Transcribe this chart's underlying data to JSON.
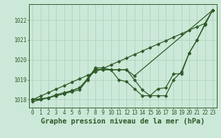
{
  "title": "Graphe pression niveau de la mer (hPa)",
  "background_color": "#cce8d8",
  "grid_color": "#aacfba",
  "line_color": "#2d5a27",
  "xlim": [
    -0.5,
    23.5
  ],
  "ylim": [
    1017.6,
    1022.8
  ],
  "xticks": [
    0,
    1,
    2,
    3,
    4,
    5,
    6,
    7,
    8,
    9,
    10,
    11,
    12,
    13,
    14,
    15,
    16,
    17,
    18,
    19,
    20,
    21,
    22,
    23
  ],
  "yticks": [
    1018,
    1019,
    1020,
    1021,
    1022
  ],
  "series": [
    {
      "x": [
        0,
        1,
        2,
        3,
        4,
        5,
        6,
        7,
        8,
        9,
        10,
        11,
        12,
        13,
        14,
        15,
        16,
        17,
        18,
        19,
        20,
        21,
        22,
        23
      ],
      "y": [
        1018.0,
        1018.18,
        1018.35,
        1018.53,
        1018.7,
        1018.88,
        1019.05,
        1019.22,
        1019.4,
        1019.57,
        1019.75,
        1019.92,
        1020.09,
        1020.27,
        1020.44,
        1020.62,
        1020.79,
        1020.96,
        1021.14,
        1021.31,
        1021.49,
        1021.66,
        1021.83,
        1022.5
      ]
    },
    {
      "x": [
        0,
        1,
        2,
        3,
        4,
        5,
        6,
        7,
        8,
        9,
        10,
        11,
        12,
        13,
        14,
        15,
        16,
        17,
        18,
        19,
        20,
        21,
        22,
        23
      ],
      "y": [
        1017.9,
        1018.0,
        1018.1,
        1018.2,
        1018.3,
        1018.4,
        1018.5,
        1019.0,
        1019.5,
        1019.5,
        1019.5,
        1019.5,
        1019.5,
        1019.0,
        1018.5,
        1018.2,
        1018.2,
        1018.2,
        1019.0,
        1019.4,
        1020.35,
        1021.0,
        1021.75,
        1022.5
      ]
    },
    {
      "x": [
        0,
        1,
        2,
        3,
        4,
        5,
        6,
        7,
        8,
        9,
        10,
        11,
        12,
        13,
        14,
        15,
        16,
        17,
        18,
        19,
        20,
        21,
        22,
        23
      ],
      "y": [
        1018.0,
        1018.0,
        1018.1,
        1018.25,
        1018.35,
        1018.45,
        1018.6,
        1019.05,
        1019.55,
        1019.5,
        1019.5,
        1019.0,
        1018.9,
        1018.55,
        1018.2,
        1018.2,
        1018.55,
        1018.6,
        1019.3,
        1019.3,
        1020.35,
        1021.0,
        1021.8,
        1022.5
      ]
    },
    {
      "x": [
        0,
        1,
        2,
        3,
        4,
        5,
        6,
        7,
        8,
        9,
        10,
        11,
        12,
        13,
        23
      ],
      "y": [
        1018.0,
        1018.05,
        1018.1,
        1018.2,
        1018.3,
        1018.45,
        1018.6,
        1019.0,
        1019.6,
        1019.6,
        1019.5,
        1019.5,
        1019.5,
        1019.2,
        1022.5
      ]
    }
  ],
  "markersize": 2.5,
  "linewidth": 0.9,
  "title_fontsize": 7.5,
  "tick_fontsize": 5.5
}
